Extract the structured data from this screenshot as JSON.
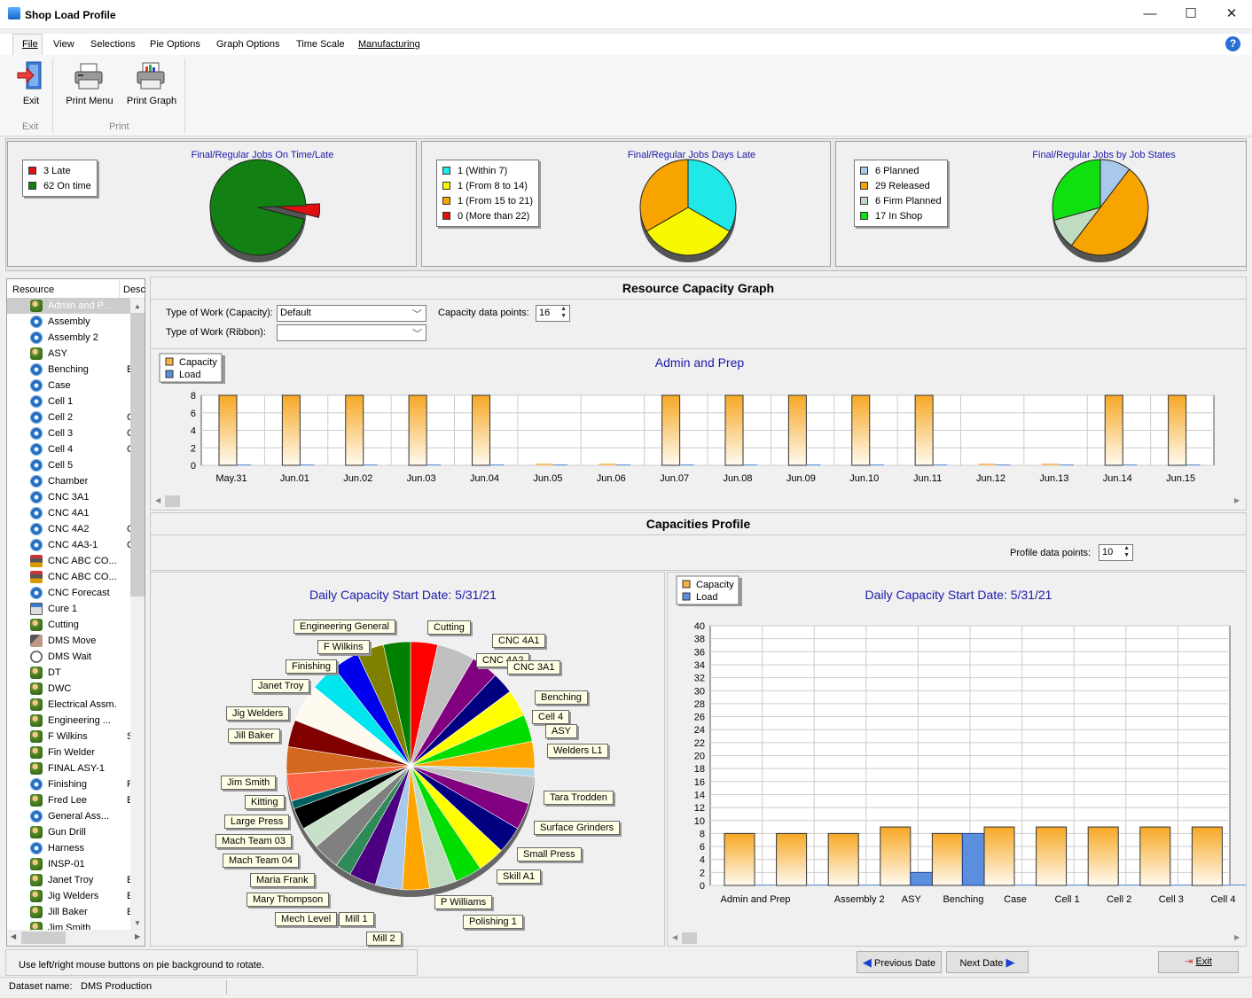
{
  "window": {
    "title": "Shop Load Profile",
    "minimize": "—",
    "maximize": "☐",
    "close": "✕"
  },
  "menu": [
    "File",
    "View",
    "Selections",
    "Pie Options",
    "Graph Options",
    "Time Scale",
    "Manufacturing"
  ],
  "ribbon": {
    "exit_label": "Exit",
    "print_menu_label": "Print Menu",
    "print_graph_label": "Print Graph",
    "group_exit": "Exit",
    "group_print": "Print"
  },
  "top_pies": [
    {
      "title": "Final/Regular Jobs On Time/Late",
      "legend": [
        {
          "label": "3 Late",
          "color": "#e01010"
        },
        {
          "label": "62 On time",
          "color": "#128012"
        }
      ],
      "values": [
        3,
        62
      ]
    },
    {
      "title": "Final/Regular Jobs Days Late",
      "legend": [
        {
          "label": "1 (Within 7)",
          "color": "#20e8e8"
        },
        {
          "label": "1 (From 8 to 14)",
          "color": "#f8f800"
        },
        {
          "label": "1 (From 15 to 21)",
          "color": "#f8a400"
        },
        {
          "label": "0 (More than 22)",
          "color": "#e01010"
        }
      ],
      "values": [
        1,
        1,
        1,
        0
      ]
    },
    {
      "title": "Final/Regular Jobs by Job States",
      "legend": [
        {
          "label": "6 Planned",
          "color": "#a8c8ec"
        },
        {
          "label": "29 Released",
          "color": "#f8a400"
        },
        {
          "label": "6 Firm Planned",
          "color": "#c0dcc0"
        },
        {
          "label": "17 In Shop",
          "color": "#10e010"
        }
      ],
      "values": [
        6,
        29,
        6,
        17
      ]
    }
  ],
  "tree": {
    "headers": [
      "Resource",
      "Desc"
    ],
    "items": [
      {
        "label": "Admin and P...",
        "icon": "people-icon",
        "desc": ""
      },
      {
        "label": "Assembly",
        "icon": "gear-icon",
        "desc": ""
      },
      {
        "label": "Assembly 2",
        "icon": "gear-icon",
        "desc": ""
      },
      {
        "label": "ASY",
        "icon": "people-icon",
        "desc": ""
      },
      {
        "label": "Benching",
        "icon": "gear-icon",
        "desc": "E"
      },
      {
        "label": "Case",
        "icon": "gear-icon",
        "desc": ""
      },
      {
        "label": "Cell 1",
        "icon": "gear-icon",
        "desc": ""
      },
      {
        "label": "Cell 2",
        "icon": "gear-icon",
        "desc": "C"
      },
      {
        "label": "Cell 3",
        "icon": "gear-icon",
        "desc": "C"
      },
      {
        "label": "Cell 4",
        "icon": "gear-icon",
        "desc": "C"
      },
      {
        "label": "Cell 5",
        "icon": "gear-icon",
        "desc": ""
      },
      {
        "label": "Chamber",
        "icon": "gear-icon",
        "desc": ""
      },
      {
        "label": "CNC 3A1",
        "icon": "gear-icon",
        "desc": ""
      },
      {
        "label": "CNC 4A1",
        "icon": "gear-icon",
        "desc": ""
      },
      {
        "label": "CNC 4A2",
        "icon": "gear-icon",
        "desc": "C"
      },
      {
        "label": "CNC 4A3-1",
        "icon": "gear-icon",
        "desc": "C"
      },
      {
        "label": "CNC ABC CO...",
        "icon": "cnc-icon",
        "desc": ""
      },
      {
        "label": "CNC ABC CO...",
        "icon": "cnc-icon",
        "desc": ""
      },
      {
        "label": "CNC Forecast",
        "icon": "gear-icon",
        "desc": ""
      },
      {
        "label": "Cure 1",
        "icon": "cure-icon",
        "desc": ""
      },
      {
        "label": "Cutting",
        "icon": "people-icon",
        "desc": ""
      },
      {
        "label": "DMS Move",
        "icon": "move-icon",
        "desc": ""
      },
      {
        "label": "DMS Wait",
        "icon": "clock-icon",
        "desc": ""
      },
      {
        "label": "DT",
        "icon": "people-icon",
        "desc": ""
      },
      {
        "label": "DWC",
        "icon": "people-icon",
        "desc": ""
      },
      {
        "label": "Electrical Assm.",
        "icon": "people-icon",
        "desc": ""
      },
      {
        "label": "Engineering ...",
        "icon": "people-icon",
        "desc": ""
      },
      {
        "label": "F Wilkins",
        "icon": "people-icon",
        "desc": "S"
      },
      {
        "label": "Fin Welder",
        "icon": "people-icon",
        "desc": ""
      },
      {
        "label": "FINAL ASY-1",
        "icon": "people-icon",
        "desc": ""
      },
      {
        "label": "Finishing",
        "icon": "gear-icon",
        "desc": "F"
      },
      {
        "label": "Fred Lee",
        "icon": "people-icon",
        "desc": "E"
      },
      {
        "label": "General Ass...",
        "icon": "gear-icon",
        "desc": ""
      },
      {
        "label": "Gun Drill",
        "icon": "people-icon",
        "desc": ""
      },
      {
        "label": "Harness",
        "icon": "gear-icon",
        "desc": ""
      },
      {
        "label": "INSP-01",
        "icon": "people-icon",
        "desc": ""
      },
      {
        "label": "Janet Troy",
        "icon": "people-icon",
        "desc": "E"
      },
      {
        "label": "Jig Welders",
        "icon": "people-icon",
        "desc": "E"
      },
      {
        "label": "Jill Baker",
        "icon": "people-icon",
        "desc": "E"
      },
      {
        "label": "Jim Smith",
        "icon": "people-icon",
        "desc": ""
      }
    ]
  },
  "resource_graph": {
    "section_title": "Resource Capacity Graph",
    "capacity_label": "Type of Work (Capacity):",
    "capacity_value": "Default",
    "ribbon_label": "Type of Work (Ribbon):",
    "ribbon_value": "",
    "points_label": "Capacity data points:",
    "points_value": "16",
    "legend": [
      {
        "label": "Capacity",
        "color": "#f8b040"
      },
      {
        "label": "Load",
        "color": "#5b8fde"
      }
    ]
  },
  "capacities_profile": {
    "section_title": "Capacities Profile",
    "points_label": "Profile data points:",
    "points_value": "10",
    "pie_title": "Daily Capacity  Start Date: 5/31/21",
    "bar_title": "Daily Capacity  Start Date: 5/31/21",
    "legend": [
      {
        "label": "Capacity",
        "color": "#f8b040"
      },
      {
        "label": "Load",
        "color": "#5b8fde"
      }
    ],
    "pie_labels": [
      "Engineering General",
      "Cutting",
      "CNC 4A1",
      "F Wilkins",
      "CNC 4A2",
      "CNC 3A1",
      "Finishing",
      "Benching",
      "Janet Troy",
      "Cell 4",
      "ASY",
      "Jig Welders",
      "Welders L1",
      "Jill Baker",
      "Jim Smith",
      "Tara Trodden",
      "Kitting",
      "Surface Grinders",
      "Large Press",
      "Mach Team 03",
      "Small Press",
      "Mach Team 04",
      "Skill A1",
      "Maria Frank",
      "P Williams",
      "Mary Thompson",
      "Polishing 1",
      "Mech Level",
      "Mill 1",
      "Mill 2"
    ]
  },
  "chart_data": [
    {
      "type": "bar",
      "title": "Admin and Prep",
      "categories": [
        "May.31",
        "Jun.01",
        "Jun.02",
        "Jun.03",
        "Jun.04",
        "Jun.05",
        "Jun.06",
        "Jun.07",
        "Jun.08",
        "Jun.09",
        "Jun.10",
        "Jun.11",
        "Jun.12",
        "Jun.13",
        "Jun.14",
        "Jun.15"
      ],
      "series": [
        {
          "name": "Capacity",
          "values": [
            8,
            8,
            8,
            8,
            8,
            0,
            0,
            8,
            8,
            8,
            8,
            8,
            0,
            0,
            8,
            8
          ]
        },
        {
          "name": "Load",
          "values": [
            0,
            0,
            0,
            0,
            0,
            0,
            0,
            0,
            0,
            0,
            0,
            0,
            0,
            0,
            0,
            0
          ]
        }
      ],
      "yticks": [
        0,
        2,
        4,
        6,
        8
      ],
      "ylim": [
        0,
        8
      ],
      "legend": "top-left"
    },
    {
      "type": "pie",
      "title": "Daily Capacity  Start Date: 5/31/21",
      "slices": [
        {
          "color": "#ff0000",
          "value": 1
        },
        {
          "color": "#c0c0c0",
          "value": 1.4
        },
        {
          "color": "#800080",
          "value": 1
        },
        {
          "color": "#000080",
          "value": 0.8
        },
        {
          "color": "#ffff00",
          "value": 1
        },
        {
          "color": "#00dd00",
          "value": 1
        },
        {
          "color": "#ffa500",
          "value": 1
        },
        {
          "color": "#add8e6",
          "value": 0.3
        },
        {
          "color": "#c0c0c0",
          "value": 1
        },
        {
          "color": "#800080",
          "value": 1
        },
        {
          "color": "#000080",
          "value": 1
        },
        {
          "color": "#ffff00",
          "value": 1
        },
        {
          "color": "#00dd00",
          "value": 1
        },
        {
          "color": "#c0dcc0",
          "value": 1
        },
        {
          "color": "#ffa500",
          "value": 1
        },
        {
          "color": "#a8c8ec",
          "value": 1
        },
        {
          "color": "#4b0082",
          "value": 1
        },
        {
          "color": "#2e8b57",
          "value": 0.6
        },
        {
          "color": "#808080",
          "value": 1
        },
        {
          "color": "#c8e0c8",
          "value": 0.8
        },
        {
          "color": "#000000",
          "value": 0.8
        },
        {
          "color": "#006060",
          "value": 0.3
        },
        {
          "color": "#ff6347",
          "value": 1
        },
        {
          "color": "#d2691e",
          "value": 1
        },
        {
          "color": "#800000",
          "value": 1
        },
        {
          "color": "#fffaf0",
          "value": 1.4
        },
        {
          "color": "#00e5ee",
          "value": 1
        },
        {
          "color": "#0000ee",
          "value": 1
        },
        {
          "color": "#808000",
          "value": 1
        },
        {
          "color": "#008000",
          "value": 1
        }
      ]
    },
    {
      "type": "bar",
      "title": "Daily Capacity  Start Date: 5/31/21",
      "categories": [
        "Admin and Prep",
        "Assembly",
        "Assembly 2",
        "ASY",
        "Benching",
        "Case",
        "Cell 1",
        "Cell 2",
        "Cell 3",
        "Cell 4"
      ],
      "xlabels_shown": [
        "Admin and Prep",
        "",
        "Assembly 2",
        "ASY",
        "Benching",
        "Case",
        "Cell 1",
        "Cell 2",
        "Cell 3",
        "Cell 4"
      ],
      "series": [
        {
          "name": "Capacity",
          "values": [
            8,
            8,
            8,
            9,
            8,
            9,
            9,
            9,
            9,
            9
          ]
        },
        {
          "name": "Load",
          "values": [
            0,
            0,
            0,
            2,
            8,
            0,
            0,
            0,
            0,
            0
          ]
        }
      ],
      "yticks": [
        0,
        2,
        4,
        6,
        8,
        10,
        12,
        14,
        16,
        18,
        20,
        22,
        24,
        26,
        28,
        30,
        32,
        34,
        36,
        38,
        40
      ],
      "ylim": [
        0,
        40
      ],
      "legend": "top-left"
    }
  ],
  "nav": {
    "prev": "Previous Date",
    "next": "Next Date",
    "exit": "Exit"
  },
  "status": {
    "hint": "Use left/right mouse buttons on pie background to rotate.",
    "dataset_label": "Dataset name:",
    "dataset_value": "DMS Production"
  }
}
